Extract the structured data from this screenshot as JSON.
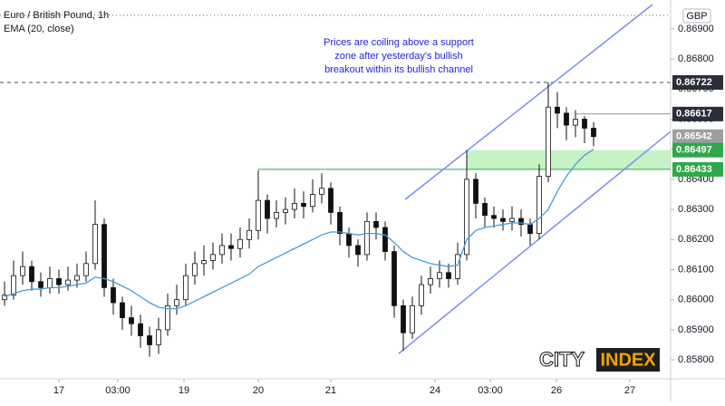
{
  "chart_data": {
    "type": "candlestick",
    "title": "Euro / British Pound, 1h",
    "indicator_label": "EMA (20, close)",
    "currency": "GBP",
    "annotation_text": [
      "Prices are coiling above a support",
      "zone after yesterday's bullish",
      "breakout within its bullish channel"
    ],
    "logo_text": [
      "CITY",
      "INDEX"
    ],
    "x": [
      0,
      1,
      2,
      3,
      4,
      5,
      6,
      7,
      8,
      9,
      10,
      11,
      12,
      13,
      14,
      15,
      16,
      17,
      18,
      19,
      20,
      21,
      22,
      23,
      24,
      25,
      26,
      27,
      28,
      29,
      30,
      31,
      32,
      33,
      34,
      35,
      36,
      37,
      38,
      39,
      40,
      41,
      42,
      43,
      44,
      45,
      46,
      47,
      48,
      49,
      50,
      51,
      52,
      53,
      54,
      55,
      56,
      57,
      58,
      59,
      60,
      61,
      62,
      63,
      64,
      65
    ],
    "open": [
      0.86,
      0.86015,
      0.8608,
      0.8611,
      0.8606,
      0.8604,
      0.8607,
      0.8605,
      0.86065,
      0.8608,
      0.8612,
      0.8625,
      0.8604,
      0.8599,
      0.8594,
      0.8592,
      0.8588,
      0.8585,
      0.859,
      0.8598,
      0.86,
      0.8608,
      0.8612,
      0.8613,
      0.8615,
      0.8618,
      0.8617,
      0.862,
      0.8623,
      0.8633,
      0.8627,
      0.8629,
      0.863,
      0.8632,
      0.8631,
      0.8635,
      0.8637,
      0.8629,
      0.8622,
      0.8618,
      0.8615,
      0.8626,
      0.8624,
      0.8616,
      0.8598,
      0.8589,
      0.8598,
      0.8605,
      0.8607,
      0.8609,
      0.8607,
      0.8615,
      0.864,
      0.8632,
      0.8628,
      0.8627,
      0.8626,
      0.8627,
      0.8625,
      0.8622,
      0.8641,
      0.8664,
      0.8662,
      0.8658,
      0.866,
      0.8657
    ],
    "high": [
      0.8606,
      0.8613,
      0.8616,
      0.8613,
      0.8609,
      0.8611,
      0.861,
      0.8611,
      0.8612,
      0.8616,
      0.8633,
      0.8627,
      0.8607,
      0.8601,
      0.8598,
      0.8595,
      0.8591,
      0.8594,
      0.8602,
      0.8605,
      0.8612,
      0.8616,
      0.8618,
      0.8619,
      0.8622,
      0.8622,
      0.8624,
      0.8627,
      0.8643,
      0.8635,
      0.8633,
      0.8634,
      0.8637,
      0.8636,
      0.864,
      0.8642,
      0.8639,
      0.8631,
      0.8624,
      0.862,
      0.8629,
      0.8629,
      0.8626,
      0.8618,
      0.86,
      0.8601,
      0.8608,
      0.8611,
      0.8613,
      0.8612,
      0.8619,
      0.86497,
      0.8642,
      0.8634,
      0.8631,
      0.863,
      0.8631,
      0.863,
      0.8627,
      0.8645,
      0.86722,
      0.8669,
      0.8664,
      0.8663,
      0.8661,
      0.8659
    ],
    "low": [
      0.8598,
      0.86,
      0.8605,
      0.8603,
      0.8601,
      0.8602,
      0.8602,
      0.8603,
      0.8604,
      0.8606,
      0.861,
      0.8601,
      0.8595,
      0.859,
      0.8588,
      0.8584,
      0.8581,
      0.8582,
      0.8588,
      0.8595,
      0.8598,
      0.8605,
      0.8608,
      0.861,
      0.8612,
      0.8613,
      0.8614,
      0.8617,
      0.862,
      0.8622,
      0.8624,
      0.8625,
      0.8627,
      0.8627,
      0.8629,
      0.8632,
      0.8625,
      0.8618,
      0.8614,
      0.8611,
      0.8613,
      0.862,
      0.8613,
      0.8594,
      0.8583,
      0.8587,
      0.8595,
      0.8602,
      0.8604,
      0.8604,
      0.8605,
      0.8613,
      0.8627,
      0.8624,
      0.8624,
      0.8623,
      0.8623,
      0.8621,
      0.8618,
      0.862,
      0.8639,
      0.8657,
      0.8653,
      0.8654,
      0.8652,
      0.8651
    ],
    "close": [
      0.86015,
      0.8608,
      0.8611,
      0.8606,
      0.8604,
      0.8607,
      0.8605,
      0.86065,
      0.8608,
      0.8612,
      0.8625,
      0.8604,
      0.8599,
      0.8594,
      0.8592,
      0.8588,
      0.8585,
      0.859,
      0.8598,
      0.86,
      0.8608,
      0.8612,
      0.8613,
      0.8615,
      0.8618,
      0.8617,
      0.862,
      0.8623,
      0.8633,
      0.8627,
      0.8629,
      0.863,
      0.8632,
      0.8631,
      0.8635,
      0.8637,
      0.8629,
      0.8622,
      0.8618,
      0.8615,
      0.8626,
      0.8624,
      0.8616,
      0.8598,
      0.8589,
      0.8598,
      0.8605,
      0.8607,
      0.8609,
      0.8607,
      0.8615,
      0.864,
      0.8632,
      0.8628,
      0.8627,
      0.8626,
      0.8627,
      0.8625,
      0.8622,
      0.8641,
      0.8664,
      0.8662,
      0.8658,
      0.866,
      0.8657,
      0.86542
    ],
    "ema": {
      "color": "#4a9bd6",
      "values": [
        0.8601,
        0.8602,
        0.8603,
        0.86035,
        0.86035,
        0.8604,
        0.8604,
        0.86045,
        0.8605,
        0.86055,
        0.86075,
        0.8607,
        0.8606,
        0.86045,
        0.8603,
        0.8601,
        0.8599,
        0.85975,
        0.8597,
        0.8597,
        0.8598,
        0.85995,
        0.8601,
        0.86025,
        0.8604,
        0.86055,
        0.8607,
        0.86085,
        0.8611,
        0.86125,
        0.8614,
        0.86155,
        0.8617,
        0.86185,
        0.862,
        0.86215,
        0.86225,
        0.86225,
        0.8622,
        0.86215,
        0.8622,
        0.8622,
        0.86215,
        0.8619,
        0.8616,
        0.8614,
        0.8613,
        0.8612,
        0.86115,
        0.8611,
        0.86115,
        0.862,
        0.8623,
        0.8624,
        0.86245,
        0.8625,
        0.86255,
        0.86255,
        0.8625,
        0.8627,
        0.863,
        0.8636,
        0.8641,
        0.8645,
        0.8648,
        0.865
      ]
    },
    "xlim": [
      -0.5,
      73.5
    ],
    "ylim": [
      0.85737,
      0.86996
    ],
    "yticks": [
      {
        "value": 0.858,
        "label": "0.85800"
      },
      {
        "value": 0.859,
        "label": "0.85900"
      },
      {
        "value": 0.86,
        "label": "0.86000"
      },
      {
        "value": 0.861,
        "label": "0.86100"
      },
      {
        "value": 0.862,
        "label": "0.86200"
      },
      {
        "value": 0.863,
        "label": "0.86300"
      },
      {
        "value": 0.864,
        "label": "0.86400"
      },
      {
        "value": 0.865,
        "label": "0.86500"
      },
      {
        "value": 0.866,
        "label": "0.86600"
      },
      {
        "value": 0.867,
        "label": "0.86700"
      },
      {
        "value": 0.868,
        "label": "0.86800"
      },
      {
        "value": 0.869,
        "label": "0.86900"
      }
    ],
    "xticks": [
      {
        "value": 6,
        "label": "17"
      },
      {
        "value": 12.5,
        "label": "03:00"
      },
      {
        "value": 19.8,
        "label": "19"
      },
      {
        "value": 28,
        "label": "20"
      },
      {
        "value": 36,
        "label": "21"
      },
      {
        "value": 47.5,
        "label": "24"
      },
      {
        "value": 53.6,
        "label": "03:00"
      },
      {
        "value": 60.9,
        "label": "26"
      },
      {
        "value": 69,
        "label": "27"
      }
    ],
    "price_labels": [
      {
        "value": 0.86722,
        "color": "#2a2e39"
      },
      {
        "value": 0.86617,
        "color": "#2a2e39"
      },
      {
        "value": 0.86542,
        "color": "#9e9e9e"
      },
      {
        "value": 0.86497,
        "color": "#2ea84a"
      },
      {
        "value": 0.86433,
        "color": "#2ea84a"
      }
    ],
    "top_level": 0.86945,
    "dashed_level": 0.86722,
    "recent_high_level": {
      "value": 0.86617,
      "x_start": 63
    },
    "breakout_level": {
      "value": 0.86433,
      "x_start": 28
    },
    "support_zone": {
      "low": 0.86433,
      "high": 0.86497,
      "x_start": 51,
      "color": "#b7f0b7"
    },
    "channel": {
      "color": "#7b8ef0",
      "upper": {
        "x": [
          44.2,
          71.5
        ],
        "y": [
          0.86333,
          0.86981
        ]
      },
      "lower": {
        "x": [
          43.5,
          73.5
        ],
        "y": [
          0.85821,
          0.86559
        ]
      }
    }
  }
}
